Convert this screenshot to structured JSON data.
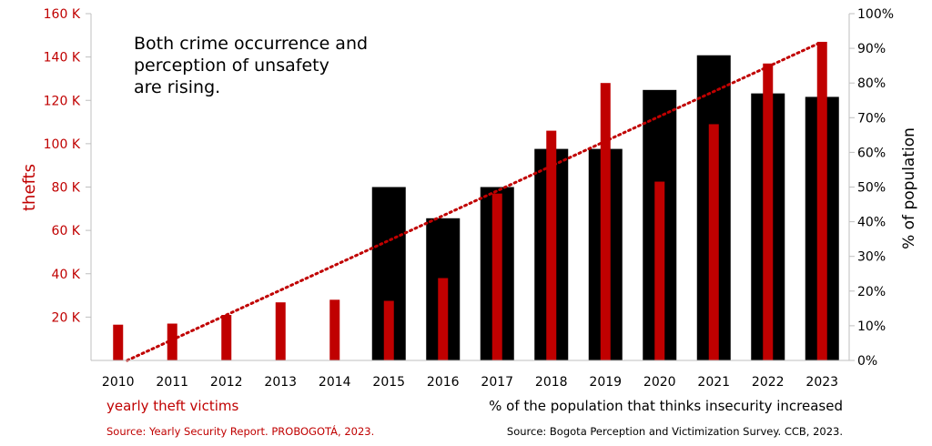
{
  "chart_data": {
    "type": "bar",
    "categories": [
      "2010",
      "2011",
      "2012",
      "2013",
      "2014",
      "2015",
      "2016",
      "2017",
      "2018",
      "2019",
      "2020",
      "2021",
      "2022",
      "2023"
    ],
    "series": [
      {
        "name": "% of the population that thinks insecurity increased",
        "axis": "right",
        "color": "#000000",
        "values": [
          null,
          null,
          null,
          null,
          null,
          50,
          41,
          50,
          61,
          61,
          78,
          88,
          77,
          76
        ]
      },
      {
        "name": "yearly theft victims",
        "axis": "left",
        "color": "#c00000",
        "values": [
          16500,
          17000,
          21000,
          26800,
          28000,
          27500,
          38000,
          77000,
          106000,
          128000,
          82500,
          109000,
          137000,
          147000
        ]
      }
    ],
    "trendline": {
      "series": "yearly theft victims",
      "style": "dotted",
      "color": "#c00000",
      "from": 0,
      "to": 147000
    },
    "left_axis": {
      "label": "thefts",
      "ylim": [
        0,
        160000
      ],
      "ticks": [
        {
          "value": 20000,
          "label": "20 K"
        },
        {
          "value": 40000,
          "label": "40 K"
        },
        {
          "value": 60000,
          "label": "60 K"
        },
        {
          "value": 80000,
          "label": "80 K"
        },
        {
          "value": 100000,
          "label": "100 K"
        },
        {
          "value": 120000,
          "label": "120 K"
        },
        {
          "value": 140000,
          "label": "140 K"
        },
        {
          "value": 160000,
          "label": "160 K"
        }
      ]
    },
    "right_axis": {
      "label": "% of population",
      "ylim": [
        0,
        100
      ],
      "ticks": [
        {
          "value": 0,
          "label": "0%"
        },
        {
          "value": 10,
          "label": "10%"
        },
        {
          "value": 20,
          "label": "20%"
        },
        {
          "value": 30,
          "label": "30%"
        },
        {
          "value": 40,
          "label": "40%"
        },
        {
          "value": 50,
          "label": "50%"
        },
        {
          "value": 60,
          "label": "60%"
        },
        {
          "value": 70,
          "label": "70%"
        },
        {
          "value": 80,
          "label": "80%"
        },
        {
          "value": 90,
          "label": "90%"
        },
        {
          "value": 100,
          "label": "100%"
        }
      ]
    },
    "annotation": [
      "Both crime occurrence and",
      "perception of unsafety",
      "are rising."
    ],
    "legend": {
      "red_label": "yearly theft victims",
      "black_label": "% of the population that thinks insecurity increased"
    },
    "sources": {
      "left": "Source: Yearly Security Report. PROBOGOTÁ, 2023.",
      "right": "Source: Bogota Perception and Victimization Survey.  CCB, 2023."
    },
    "grid": false
  }
}
